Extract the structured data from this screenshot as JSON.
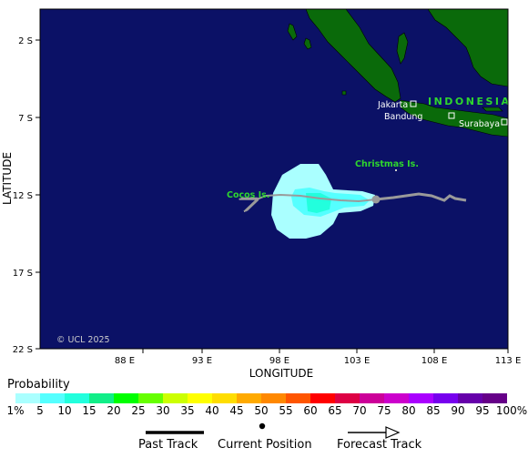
{
  "map": {
    "watermark": "© UCL 2025",
    "axes": {
      "xlabel": "LONGITUDE",
      "ylabel": "LATITUDE",
      "x_ticks": [
        "88 E",
        "93 E",
        "98 E",
        "103 E",
        "108 E",
        "113 E"
      ],
      "y_ticks": [
        "2 S",
        "7 S",
        "12 S",
        "17 S",
        "22 S"
      ]
    },
    "places": {
      "country": "INDONESIA",
      "jakarta": "Jakarta",
      "bandung": "Bandung",
      "surabaya": "Surabaya",
      "christmas": "Christmas Is.",
      "cocos": "Cocos Is."
    },
    "colors": {
      "ocean": "#0b1166",
      "land": "#0a6a0a",
      "past_track": "#9a9a9a",
      "forecast_track": "#9a9a9a",
      "label_green": "#2ed62e"
    }
  },
  "legend": {
    "title": "Probability",
    "labels": [
      "1%",
      "5",
      "10",
      "15",
      "20",
      "25",
      "30",
      "35",
      "40",
      "45",
      "50",
      "55",
      "60",
      "65",
      "70",
      "75",
      "80",
      "85",
      "90",
      "95",
      "100%"
    ],
    "colors": [
      "#aaffff",
      "#55ffff",
      "#22ffdd",
      "#11ee88",
      "#00ff00",
      "#66ff00",
      "#ccff00",
      "#ffff00",
      "#ffdd00",
      "#ffaa00",
      "#ff8800",
      "#ff5500",
      "#ff0000",
      "#dd0044",
      "#cc0099",
      "#cc00cc",
      "#aa00ff",
      "#7700ee",
      "#6600aa",
      "#660088"
    ]
  },
  "track_key": {
    "past": "Past Track",
    "current": "Current Position",
    "forecast": "Forecast Track"
  }
}
